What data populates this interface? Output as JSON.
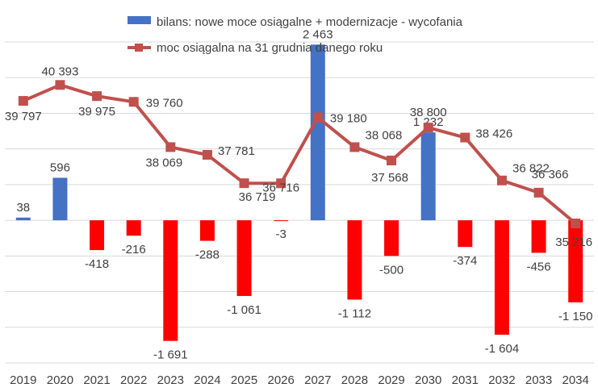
{
  "chart_data": {
    "type": "bar",
    "categories": [
      "2019",
      "2020",
      "2021",
      "2022",
      "2023",
      "2024",
      "2025",
      "2026",
      "2027",
      "2028",
      "2029",
      "2030",
      "2031",
      "2032",
      "2033",
      "2034"
    ],
    "series": [
      {
        "name": "bilans: nowe moce osiągalne + modernizacje - wycofania",
        "kind": "bar",
        "axis": "left",
        "values": [
          38,
          596,
          -418,
          -216,
          -1691,
          -288,
          -1061,
          -3,
          2463,
          -1112,
          -500,
          1232,
          -374,
          -1604,
          -456,
          -1150
        ],
        "labels": [
          "38",
          "596",
          "-418",
          "-216",
          "-1 691",
          "-288",
          "-1 061",
          "-3",
          "2 463",
          "-1 112",
          "-500",
          "1 232",
          "-374",
          "-1 604",
          "-456",
          "-1 150"
        ],
        "color_positive": "#4472C4",
        "color_negative": "#FF0000"
      },
      {
        "name": "moc osiągalna na 31 grudnia danego roku",
        "kind": "line",
        "axis": "right",
        "values": [
          39797,
          40393,
          39975,
          39760,
          38069,
          37781,
          36719,
          36716,
          39180,
          38068,
          37568,
          38800,
          38426,
          36822,
          36366,
          35216
        ],
        "labels": [
          "39 797",
          "40 393",
          "39 975",
          "39 760",
          "38 069",
          "37 781",
          "36 719",
          "36 716",
          "39 180",
          "38 068",
          "37 568",
          "38 800",
          "38 426",
          "36 822",
          "36 366",
          "35 216"
        ],
        "color": "#C0504D"
      }
    ],
    "ylim_left": [
      -2000,
      2500
    ],
    "ylim_right": [
      30000,
      42000
    ],
    "grid": true,
    "legend": "top"
  }
}
